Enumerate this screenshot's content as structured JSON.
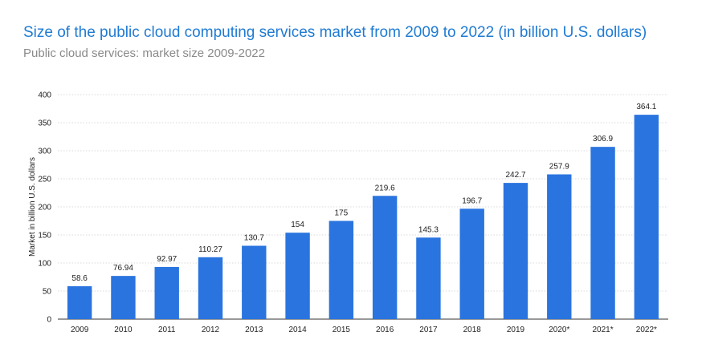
{
  "chart_data": {
    "type": "bar",
    "title": "Size of the public cloud computing services market from 2009 to 2022 (in billion U.S. dollars)",
    "subtitle": "Public cloud services: market size 2009-2022",
    "xlabel": "",
    "ylabel": "Market in billion U.S. dollars",
    "ylim": [
      0,
      400
    ],
    "yticks": [
      0,
      50,
      100,
      150,
      200,
      250,
      300,
      350,
      400
    ],
    "grid": true,
    "categories": [
      "2009",
      "2010",
      "2011",
      "2012",
      "2013",
      "2014",
      "2015",
      "2016",
      "2017",
      "2018",
      "2019",
      "2020*",
      "2021*",
      "2022*"
    ],
    "values": [
      58.6,
      76.94,
      92.97,
      110.27,
      130.7,
      154,
      175,
      219.6,
      145.3,
      196.7,
      242.7,
      257.9,
      306.9,
      364.1
    ],
    "value_labels": [
      "58.6",
      "76.94",
      "92.97",
      "110.27",
      "130.7",
      "154",
      "175",
      "219.6",
      "145.3",
      "196.7",
      "242.7",
      "257.9",
      "306.9",
      "364.1"
    ],
    "bar_color": "#2a74df",
    "grid_color": "#d9d9d9"
  }
}
